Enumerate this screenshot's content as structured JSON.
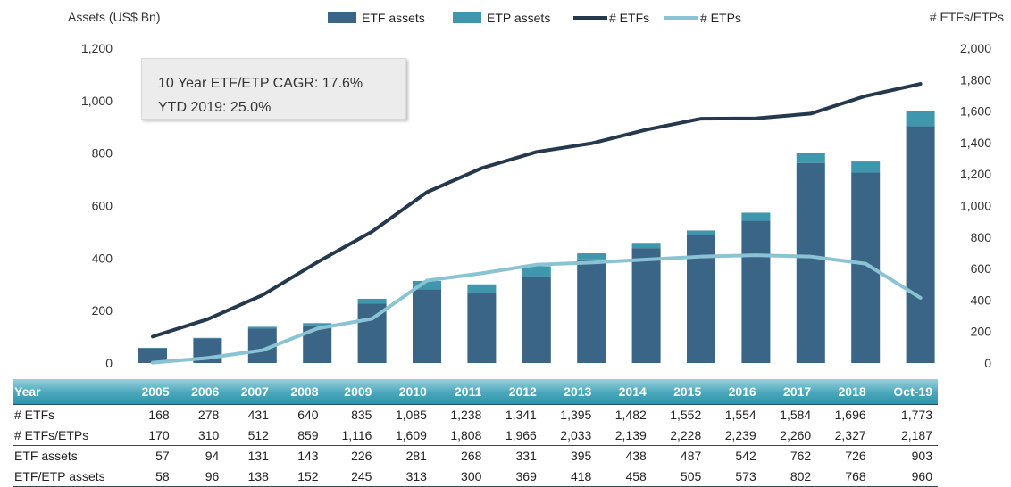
{
  "chart_data": {
    "type": "bar",
    "ylabel": "Assets (US$ Bn)",
    "y2label": "# ETFs/ETPs",
    "ylim": [
      0,
      1200
    ],
    "y2lim": [
      0,
      2000
    ],
    "yticks": [
      "0",
      "200",
      "400",
      "600",
      "800",
      "1,000",
      "1,200"
    ],
    "y2ticks": [
      "0",
      "200",
      "400",
      "600",
      "800",
      "1,000",
      "1,200",
      "1,400",
      "1,600",
      "1,800",
      "2,000"
    ],
    "categories": [
      "2005",
      "2006",
      "2007",
      "2008",
      "2009",
      "2010",
      "2011",
      "2012",
      "2013",
      "2014",
      "2015",
      "2016",
      "2017",
      "2018",
      "Oct-19"
    ],
    "bar_series": [
      {
        "name": "ETF assets",
        "color": "#3a6587",
        "values": [
          57,
          94,
          131,
          143,
          226,
          281,
          268,
          331,
          395,
          438,
          487,
          542,
          762,
          726,
          903
        ]
      },
      {
        "name": "ETP assets",
        "color": "#3f97ad",
        "values": [
          1,
          2,
          7,
          9,
          19,
          32,
          32,
          38,
          23,
          20,
          18,
          31,
          40,
          42,
          57
        ]
      }
    ],
    "line_series": [
      {
        "name": "# ETFs",
        "color": "#26384d",
        "axis": "right",
        "values": [
          168,
          278,
          431,
          640,
          835,
          1085,
          1238,
          1341,
          1395,
          1482,
          1552,
          1554,
          1584,
          1696,
          1773
        ]
      },
      {
        "name": "# ETPs",
        "color": "#8ac4d4",
        "axis": "right",
        "values": [
          2,
          32,
          81,
          219,
          281,
          524,
          570,
          625,
          638,
          657,
          676,
          685,
          676,
          631,
          414
        ]
      }
    ],
    "legend_position": "top",
    "annotation": [
      "10 Year ETF/ETP CAGR: 17.6%",
      "YTD 2019: 25.0%"
    ]
  },
  "table": {
    "headers": [
      "Year",
      "2005",
      "2006",
      "2007",
      "2008",
      "2009",
      "2010",
      "2011",
      "2012",
      "2013",
      "2014",
      "2015",
      "2016",
      "2017",
      "2018",
      "Oct-19"
    ],
    "rows": [
      {
        "label": "# ETFs",
        "values": [
          "168",
          "278",
          "431",
          "640",
          "835",
          "1,085",
          "1,238",
          "1,341",
          "1,395",
          "1,482",
          "1,552",
          "1,554",
          "1,584",
          "1,696",
          "1,773"
        ]
      },
      {
        "label": "# ETFs/ETPs",
        "values": [
          "170",
          "310",
          "512",
          "859",
          "1,116",
          "1,609",
          "1,808",
          "1,966",
          "2,033",
          "2,139",
          "2,228",
          "2,239",
          "2,260",
          "2,327",
          "2,187"
        ]
      },
      {
        "label": "ETF assets",
        "values": [
          "57",
          "94",
          "131",
          "143",
          "226",
          "281",
          "268",
          "331",
          "395",
          "438",
          "487",
          "542",
          "762",
          "726",
          "903"
        ]
      },
      {
        "label": "ETF/ETP assets",
        "values": [
          "58",
          "96",
          "138",
          "152",
          "245",
          "313",
          "300",
          "369",
          "418",
          "458",
          "505",
          "573",
          "802",
          "768",
          "960"
        ]
      }
    ]
  }
}
